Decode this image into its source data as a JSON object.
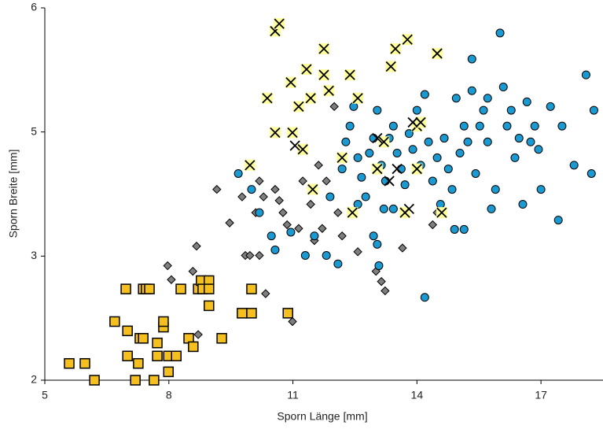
{
  "chart_data": {
    "type": "scatter",
    "x_label": "Sporn Länge [mm]",
    "y_label": "Sporn Breite [mm]",
    "xlim": [
      5,
      18.5
    ],
    "ylim": [
      2,
      6
    ],
    "xticks": [
      5,
      8,
      11,
      14,
      17
    ],
    "yticks": [
      2,
      {
        "value": 3.333,
        "label": "3"
      },
      {
        "value": 4.667,
        "label": "5"
      },
      6
    ],
    "series": [
      {
        "marker": "square",
        "color": "#f5c01e",
        "x": [
          5.59,
          5.97,
          6.2,
          6.69,
          6.96,
          7.0,
          7.0,
          7.19,
          7.26,
          7.3,
          7.38,
          7.45,
          7.53,
          7.38,
          7.64,
          7.72,
          7.72,
          7.87,
          7.87,
          7.99,
          7.99,
          8.18,
          8.29,
          8.48,
          8.59,
          8.71,
          8.78,
          8.82,
          8.97,
          8.97,
          8.97,
          9.28,
          9.77,
          10.0,
          10.0,
          10.88
        ],
        "y": [
          2.18,
          2.18,
          2.0,
          2.63,
          2.98,
          2.53,
          2.26,
          2.0,
          2.18,
          2.45,
          2.98,
          2.98,
          2.98,
          2.45,
          2.0,
          2.4,
          2.26,
          2.57,
          2.63,
          2.26,
          2.09,
          2.26,
          2.98,
          2.45,
          2.36,
          2.98,
          3.07,
          2.98,
          3.07,
          2.98,
          2.8,
          2.45,
          2.72,
          2.72,
          2.98,
          2.72
        ]
      },
      {
        "marker": "diamond",
        "color": "#7f7f7f",
        "x": [
          8.71,
          7.97,
          8.06,
          8.58,
          8.67,
          9.16,
          9.47,
          9.77,
          9.85,
          9.96,
          10.1,
          10.19,
          10.29,
          10.57,
          10.67,
          10.76,
          10.86,
          10.99,
          11.14,
          11.24,
          11.43,
          11.52,
          11.62,
          11.71,
          11.81,
          12.0,
          12.09,
          12.19,
          12.57,
          13.01,
          13.14,
          13.23,
          13.65,
          14.38,
          14.49,
          10.19,
          10.34
        ],
        "y": [
          2.49,
          3.23,
          3.08,
          3.17,
          3.44,
          4.05,
          3.69,
          3.97,
          3.34,
          3.34,
          3.8,
          4.14,
          3.97,
          4.05,
          3.93,
          3.8,
          3.67,
          2.63,
          3.63,
          4.14,
          3.89,
          3.5,
          4.31,
          3.63,
          4.14,
          4.94,
          3.8,
          3.55,
          3.38,
          3.17,
          3.06,
          2.96,
          3.42,
          3.67,
          3.8,
          3.34,
          2.93
        ]
      },
      {
        "marker": "circle",
        "color": "#1b9ad2",
        "x": [
          9.68,
          10.0,
          10.19,
          10.48,
          10.57,
          10.95,
          11.3,
          11.52,
          11.81,
          12.09,
          11.9,
          12.19,
          12.28,
          12.38,
          12.57,
          12.47,
          12.66,
          12.76,
          12.85,
          12.95,
          13.04,
          13.14,
          13.2,
          13.24,
          13.33,
          13.43,
          13.52,
          13.62,
          13.71,
          13.81,
          13.9,
          14.0,
          14.09,
          14.19,
          14.28,
          14.38,
          14.49,
          14.57,
          14.66,
          14.76,
          14.85,
          14.95,
          15.04,
          15.14,
          15.23,
          15.33,
          15.42,
          15.52,
          15.61,
          15.71,
          15.8,
          15.9,
          16.01,
          16.09,
          16.18,
          16.28,
          16.37,
          16.47,
          16.56,
          16.66,
          16.75,
          16.85,
          16.94,
          17.0,
          17.23,
          17.42,
          17.51,
          17.8,
          18.09,
          18.22,
          18.28,
          14.19,
          13.43,
          13.04,
          15.71,
          15.33,
          14.91,
          15.14,
          13.08,
          12.57,
          12.95
        ],
        "y": [
          4.22,
          4.05,
          3.8,
          3.55,
          3.4,
          3.59,
          3.34,
          3.55,
          3.34,
          3.25,
          3.97,
          4.27,
          4.56,
          4.73,
          4.39,
          4.94,
          4.18,
          3.97,
          4.44,
          4.6,
          4.9,
          4.31,
          3.84,
          4.14,
          4.6,
          4.73,
          4.44,
          4.27,
          4.1,
          4.65,
          4.48,
          4.9,
          4.31,
          5.07,
          4.56,
          4.14,
          4.39,
          3.89,
          4.6,
          4.27,
          4.05,
          5.03,
          4.44,
          4.73,
          4.56,
          5.11,
          4.22,
          4.73,
          4.9,
          4.56,
          3.84,
          4.05,
          5.73,
          5.15,
          4.73,
          4.9,
          4.39,
          4.6,
          3.89,
          4.99,
          4.56,
          4.73,
          4.48,
          4.05,
          4.94,
          3.72,
          4.73,
          4.31,
          5.28,
          4.22,
          4.9,
          2.89,
          3.84,
          3.46,
          5.03,
          5.45,
          3.62,
          3.62,
          3.23,
          3.89,
          3.55
        ]
      },
      {
        "marker": "cross-box",
        "color": "#ffff99",
        "x": [
          9.96,
          10.38,
          10.57,
          10.57,
          10.67,
          10.95,
          10.99,
          11.14,
          11.24,
          11.33,
          11.43,
          11.48,
          11.75,
          11.75,
          11.87,
          12.19,
          12.38,
          12.57,
          12.44,
          13.04,
          13.2,
          13.37,
          13.48,
          13.77,
          14.0,
          14.09,
          14.0,
          14.49,
          14.6,
          13.71
        ],
        "y": [
          4.31,
          5.03,
          4.66,
          5.75,
          5.83,
          5.2,
          4.66,
          4.94,
          4.48,
          5.34,
          5.03,
          4.05,
          5.56,
          5.28,
          5.11,
          4.39,
          5.28,
          5.03,
          3.8,
          4.27,
          4.56,
          5.37,
          5.56,
          5.66,
          4.73,
          4.77,
          4.27,
          5.51,
          3.8,
          3.8
        ]
      },
      {
        "marker": "cross",
        "color": "#000000",
        "x": [
          13.04,
          13.33,
          13.81,
          13.9,
          13.52,
          11.05
        ],
        "y": [
          4.6,
          4.14,
          3.84,
          4.77,
          4.27,
          4.52
        ]
      }
    ]
  }
}
